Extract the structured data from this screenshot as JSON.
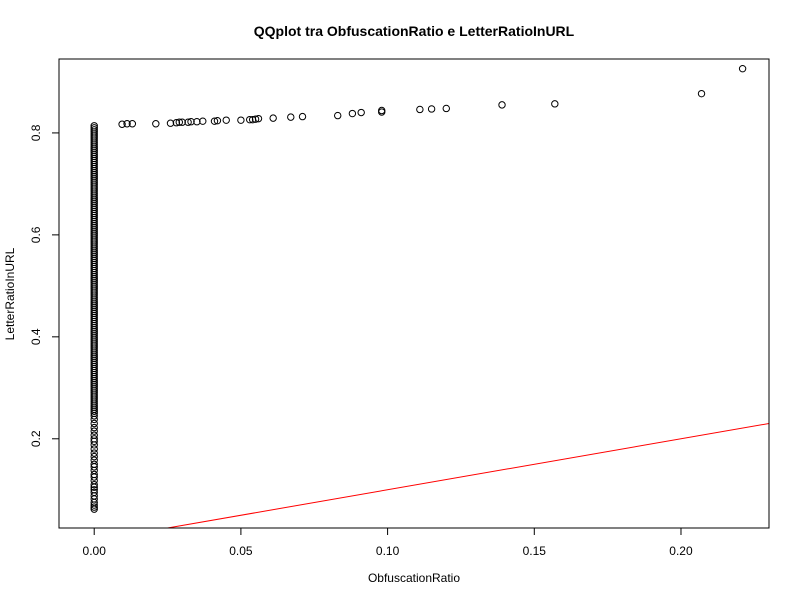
{
  "chart_data": {
    "type": "scatter",
    "title": "QQplot tra ObfuscationRatio e LetterRatioInURL",
    "xlabel": "ObfuscationRatio",
    "ylabel": "LetterRatioInURL",
    "xlim": [
      -0.012,
      0.23
    ],
    "ylim": [
      0.025,
      0.945
    ],
    "x_ticks": [
      0.0,
      0.05,
      0.1,
      0.15,
      0.2
    ],
    "x_tick_labels": [
      "0.00",
      "0.05",
      "0.10",
      "0.15",
      "0.20"
    ],
    "y_ticks": [
      0.2,
      0.4,
      0.6,
      0.8
    ],
    "y_tick_labels": [
      "0.2",
      "0.4",
      "0.6",
      "0.8"
    ],
    "grid": false,
    "legend": "none",
    "point_color": "#000000",
    "line_color": "#ff0000",
    "reference_line": {
      "intercept": 0,
      "slope": 1
    },
    "zero_column": {
      "x": 0.0,
      "y_min": 0.06,
      "y_max": 0.817,
      "dense_from": 0.25,
      "sparse_y": [
        0.062,
        0.066,
        0.07,
        0.075,
        0.082,
        0.088,
        0.095,
        0.1,
        0.105,
        0.11,
        0.118,
        0.125,
        0.13,
        0.138,
        0.145,
        0.15,
        0.158,
        0.165,
        0.172,
        0.18,
        0.188,
        0.195,
        0.2,
        0.207,
        0.215,
        0.222,
        0.23,
        0.238,
        0.245
      ]
    },
    "points": [
      [
        0.0095,
        0.817
      ],
      [
        0.0112,
        0.818
      ],
      [
        0.013,
        0.818
      ],
      [
        0.021,
        0.818
      ],
      [
        0.026,
        0.819
      ],
      [
        0.028,
        0.82
      ],
      [
        0.029,
        0.821
      ],
      [
        0.03,
        0.821
      ],
      [
        0.032,
        0.821
      ],
      [
        0.033,
        0.822
      ],
      [
        0.035,
        0.822
      ],
      [
        0.037,
        0.823
      ],
      [
        0.041,
        0.823
      ],
      [
        0.042,
        0.824
      ],
      [
        0.045,
        0.825
      ],
      [
        0.05,
        0.825
      ],
      [
        0.053,
        0.826
      ],
      [
        0.054,
        0.826
      ],
      [
        0.055,
        0.827
      ],
      [
        0.056,
        0.828
      ],
      [
        0.061,
        0.829
      ],
      [
        0.067,
        0.831
      ],
      [
        0.071,
        0.832
      ],
      [
        0.083,
        0.834
      ],
      [
        0.088,
        0.838
      ],
      [
        0.091,
        0.84
      ],
      [
        0.098,
        0.841
      ],
      [
        0.098,
        0.844
      ],
      [
        0.111,
        0.846
      ],
      [
        0.115,
        0.847
      ],
      [
        0.12,
        0.848
      ],
      [
        0.139,
        0.855
      ],
      [
        0.157,
        0.857
      ],
      [
        0.207,
        0.877
      ],
      [
        0.221,
        0.926
      ]
    ]
  }
}
